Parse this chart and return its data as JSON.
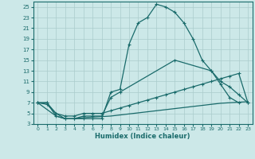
{
  "background_color": "#cce8e8",
  "grid_color": "#aacccc",
  "line_color": "#1a6b6b",
  "xlabel": "Humidex (Indice chaleur)",
  "xlim": [
    -0.5,
    23.5
  ],
  "ylim": [
    3,
    26
  ],
  "xticks": [
    0,
    1,
    2,
    3,
    4,
    5,
    6,
    7,
    8,
    9,
    10,
    11,
    12,
    13,
    14,
    15,
    16,
    17,
    18,
    19,
    20,
    21,
    22,
    23
  ],
  "yticks": [
    3,
    5,
    7,
    9,
    11,
    13,
    15,
    17,
    19,
    21,
    23,
    25
  ],
  "line1_x": [
    0,
    1,
    2,
    3,
    4,
    5,
    6,
    7,
    8,
    9,
    10,
    11,
    12,
    13,
    14,
    15,
    16,
    17,
    18,
    19,
    20,
    21,
    22
  ],
  "line1_y": [
    7,
    7,
    4.5,
    4,
    4,
    4,
    4,
    4,
    9,
    9.5,
    18,
    22,
    23,
    25.5,
    25,
    24,
    22,
    19,
    15,
    13,
    10.5,
    8,
    7
  ],
  "line2_x": [
    0,
    1,
    2,
    3,
    4,
    5,
    6,
    7,
    8,
    9,
    15,
    19,
    20,
    21,
    22,
    23
  ],
  "line2_y": [
    7,
    7,
    5,
    4,
    4,
    4.5,
    4.5,
    4.5,
    8,
    9,
    15,
    13,
    11,
    10,
    8.5,
    7
  ],
  "line3_x": [
    0,
    1,
    2,
    3,
    4,
    5,
    6,
    7,
    8,
    9,
    10,
    11,
    12,
    13,
    14,
    15,
    16,
    17,
    18,
    19,
    20,
    21,
    22,
    23
  ],
  "line3_y": [
    7,
    6.7,
    5,
    4.5,
    4.5,
    5,
    5,
    5,
    5.5,
    6,
    6.5,
    7,
    7.5,
    8,
    8.5,
    9,
    9.5,
    10,
    10.5,
    11,
    11.5,
    12,
    12.5,
    7
  ],
  "line4_x": [
    0,
    2,
    3,
    4,
    5,
    6,
    7,
    8,
    9,
    10,
    11,
    12,
    13,
    14,
    15,
    16,
    17,
    18,
    19,
    20,
    21,
    22,
    23
  ],
  "line4_y": [
    7,
    4.5,
    4,
    4,
    4.2,
    4.3,
    4.4,
    4.5,
    4.7,
    4.9,
    5.1,
    5.3,
    5.5,
    5.7,
    5.9,
    6.1,
    6.3,
    6.5,
    6.7,
    6.9,
    7.0,
    7.1,
    7.2
  ]
}
